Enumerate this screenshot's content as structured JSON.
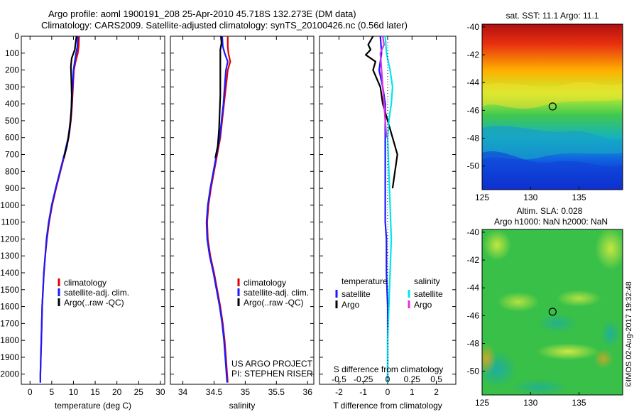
{
  "title": {
    "line1": "Argo profile: aoml 1900191_208 25-Apr-2010 45.718S 132.273E (DM data)",
    "line2": "Climatology: CARS2009. Satellite-adjusted climatology: synTS_20100426.nc (0.56d later)"
  },
  "credit": "©IMOS 02-Aug-2017 19:32:48",
  "colors": {
    "climatology": "#e00000",
    "satellite": "#1a1aff",
    "argo": "#000000",
    "sal_satellite": "#00e5ee",
    "sal_argo": "#e030e0"
  },
  "chart_data": [
    {
      "type": "line",
      "name": "temperature-panel",
      "xlabel": "temperature (deg C)",
      "ylabel": "",
      "xlim": [
        -2,
        31
      ],
      "ylim": [
        2060,
        0
      ],
      "xticks": [
        "0",
        "5",
        "10",
        "15",
        "20",
        "25",
        "30"
      ],
      "xtick_values": [
        0,
        5,
        10,
        15,
        20,
        25,
        30
      ],
      "yticks": [
        "0",
        "100",
        "200",
        "300",
        "400",
        "500",
        "600",
        "700",
        "800",
        "900",
        "1000",
        "1100",
        "1200",
        "1300",
        "1400",
        "1500",
        "1600",
        "1700",
        "1800",
        "1900",
        "2000"
      ],
      "ytick_values": [
        0,
        100,
        200,
        300,
        400,
        500,
        600,
        700,
        800,
        900,
        1000,
        1100,
        1200,
        1300,
        1400,
        1500,
        1600,
        1700,
        1800,
        1900,
        2000
      ],
      "legend": [
        "climatology",
        "satellite-adj. clim.",
        "Argo(..raw -QC)"
      ],
      "series": [
        {
          "name": "climatology",
          "points": [
            [
              11.3,
              0
            ],
            [
              11.2,
              60
            ],
            [
              11.0,
              100
            ],
            [
              10.5,
              150
            ],
            [
              10.1,
              200
            ],
            [
              9.9,
              300
            ],
            [
              9.7,
              400
            ],
            [
              9.4,
              500
            ],
            [
              8.9,
              600
            ],
            [
              8.0,
              700
            ],
            [
              7.0,
              800
            ],
            [
              6.0,
              900
            ],
            [
              5.1,
              1000
            ],
            [
              4.4,
              1100
            ],
            [
              3.9,
              1200
            ],
            [
              3.5,
              1300
            ],
            [
              3.2,
              1400
            ],
            [
              3.0,
              1500
            ],
            [
              2.8,
              1600
            ],
            [
              2.7,
              1700
            ],
            [
              2.6,
              1800
            ],
            [
              2.5,
              1900
            ],
            [
              2.4,
              2000
            ],
            [
              2.4,
              2050
            ]
          ]
        },
        {
          "name": "satellite-adj. clim.",
          "points": [
            [
              11.0,
              0
            ],
            [
              10.9,
              60
            ],
            [
              10.6,
              100
            ],
            [
              10.3,
              150
            ],
            [
              10.0,
              200
            ],
            [
              9.8,
              300
            ],
            [
              9.6,
              400
            ],
            [
              9.3,
              500
            ],
            [
              8.8,
              600
            ],
            [
              7.9,
              700
            ],
            [
              6.9,
              800
            ],
            [
              5.9,
              900
            ],
            [
              5.0,
              1000
            ],
            [
              4.3,
              1100
            ],
            [
              3.8,
              1200
            ],
            [
              3.5,
              1300
            ],
            [
              3.2,
              1400
            ],
            [
              3.0,
              1500
            ],
            [
              2.8,
              1600
            ],
            [
              2.7,
              1700
            ],
            [
              2.6,
              1800
            ],
            [
              2.5,
              1900
            ],
            [
              2.4,
              2000
            ],
            [
              2.4,
              2050
            ]
          ]
        },
        {
          "name": "Argo(..raw -QC)",
          "points": [
            [
              10.7,
              0
            ],
            [
              10.5,
              40
            ],
            [
              10.3,
              80
            ],
            [
              9.6,
              130
            ],
            [
              9.4,
              180
            ],
            [
              9.5,
              250
            ],
            [
              9.6,
              350
            ],
            [
              9.5,
              450
            ],
            [
              9.1,
              560
            ],
            [
              8.5,
              650
            ],
            [
              7.8,
              720
            ]
          ]
        }
      ]
    },
    {
      "type": "line",
      "name": "salinity-panel",
      "xlabel": "salinity",
      "ylabel": "",
      "xlim": [
        33.8,
        36.1
      ],
      "ylim": [
        2060,
        0
      ],
      "xticks": [
        "34",
        "34.5",
        "35",
        "35.5",
        "36"
      ],
      "xtick_values": [
        34,
        34.5,
        35,
        35.5,
        36
      ],
      "legend": [
        "climatology",
        "satellite-adj. clim.",
        "Argo(..raw -QC)"
      ],
      "annotation": [
        "US ARGO PROJECT",
        "PI: STEPHEN RISER"
      ],
      "series": [
        {
          "name": "climatology",
          "points": [
            [
              34.72,
              0
            ],
            [
              34.72,
              60
            ],
            [
              34.73,
              100
            ],
            [
              34.76,
              150
            ],
            [
              34.72,
              200
            ],
            [
              34.69,
              300
            ],
            [
              34.66,
              400
            ],
            [
              34.63,
              500
            ],
            [
              34.6,
              600
            ],
            [
              34.55,
              700
            ],
            [
              34.5,
              800
            ],
            [
              34.45,
              900
            ],
            [
              34.41,
              1000
            ],
            [
              34.39,
              1100
            ],
            [
              34.4,
              1200
            ],
            [
              34.44,
              1300
            ],
            [
              34.5,
              1400
            ],
            [
              34.55,
              1500
            ],
            [
              34.6,
              1600
            ],
            [
              34.64,
              1700
            ],
            [
              34.67,
              1800
            ],
            [
              34.69,
              1900
            ],
            [
              34.71,
              2000
            ],
            [
              34.72,
              2050
            ]
          ]
        },
        {
          "name": "satellite-adj. clim.",
          "points": [
            [
              34.63,
              0
            ],
            [
              34.64,
              60
            ],
            [
              34.67,
              100
            ],
            [
              34.72,
              150
            ],
            [
              34.69,
              200
            ],
            [
              34.67,
              300
            ],
            [
              34.65,
              400
            ],
            [
              34.62,
              500
            ],
            [
              34.59,
              600
            ],
            [
              34.54,
              700
            ],
            [
              34.49,
              800
            ],
            [
              34.44,
              900
            ],
            [
              34.4,
              1000
            ],
            [
              34.38,
              1100
            ],
            [
              34.39,
              1200
            ],
            [
              34.43,
              1300
            ],
            [
              34.49,
              1400
            ],
            [
              34.54,
              1500
            ],
            [
              34.59,
              1600
            ],
            [
              34.63,
              1700
            ],
            [
              34.66,
              1800
            ],
            [
              34.68,
              1900
            ],
            [
              34.7,
              2000
            ],
            [
              34.71,
              2050
            ]
          ]
        },
        {
          "name": "Argo(..raw -QC)",
          "points": [
            [
              34.61,
              0
            ],
            [
              34.62,
              40
            ],
            [
              34.6,
              80
            ],
            [
              34.6,
              150
            ],
            [
              34.6,
              250
            ],
            [
              34.6,
              350
            ],
            [
              34.59,
              450
            ],
            [
              34.58,
              550
            ],
            [
              34.56,
              650
            ],
            [
              34.52,
              720
            ]
          ]
        }
      ]
    },
    {
      "type": "line",
      "name": "difference-panel",
      "xlabel": "T difference from climatology",
      "xlabel_top": "S difference from climatology",
      "xlim": [
        -2.8,
        2.8
      ],
      "ylim": [
        2060,
        0
      ],
      "xticks": [
        "-2",
        "-1",
        "0",
        "1",
        "2"
      ],
      "xtick_values": [
        -2,
        -1,
        0,
        1,
        2
      ],
      "s_ticks": [
        "-0.5",
        "-0.25",
        "0",
        "0.25",
        "0.5"
      ],
      "legend_titles": [
        "temperature",
        "salinity"
      ],
      "legend": [
        "satellite",
        "Argo",
        "satellite",
        "Argo"
      ],
      "series": [
        {
          "name": "temperature satellite",
          "points": [
            [
              -0.3,
              0
            ],
            [
              -0.25,
              100
            ],
            [
              -0.35,
              200
            ],
            [
              -0.2,
              300
            ],
            [
              -0.1,
              400
            ],
            [
              -0.1,
              500
            ],
            [
              -0.1,
              600
            ],
            [
              -0.1,
              700
            ],
            [
              -0.1,
              800
            ],
            [
              -0.1,
              900
            ],
            [
              -0.1,
              1000
            ],
            [
              -0.1,
              1100
            ],
            [
              -0.05,
              1200
            ],
            [
              -0.05,
              1400
            ],
            [
              0,
              1600
            ],
            [
              0,
              1800
            ],
            [
              0,
              2050
            ]
          ]
        },
        {
          "name": "temperature Argo",
          "points": [
            [
              -0.6,
              0
            ],
            [
              -0.8,
              50
            ],
            [
              -0.7,
              80
            ],
            [
              -0.9,
              110
            ],
            [
              -0.5,
              150
            ],
            [
              -0.6,
              200
            ],
            [
              -0.3,
              300
            ],
            [
              -0.2,
              400
            ],
            [
              0.0,
              500
            ],
            [
              0.2,
              600
            ],
            [
              0.4,
              700
            ],
            [
              0.3,
              800
            ],
            [
              0.2,
              900
            ]
          ]
        },
        {
          "name": "salinity satellite",
          "points": [
            [
              -0.1,
              0
            ],
            [
              -0.05,
              100
            ],
            [
              0.1,
              200
            ],
            [
              0.2,
              300
            ],
            [
              0.15,
              400
            ],
            [
              0.05,
              500
            ],
            [
              0.0,
              600
            ],
            [
              0.05,
              800
            ],
            [
              0.1,
              1000
            ],
            [
              0.15,
              1200
            ],
            [
              0.1,
              1400
            ],
            [
              0.05,
              1600
            ],
            [
              0,
              1800
            ],
            [
              0,
              2050
            ]
          ]
        },
        {
          "name": "salinity Argo",
          "points": [
            [
              -0.2,
              0
            ],
            [
              -0.15,
              50
            ],
            [
              -0.3,
              100
            ],
            [
              -0.25,
              200
            ],
            [
              -0.2,
              300
            ],
            [
              -0.15,
              400
            ],
            [
              -0.1,
              500
            ],
            [
              -0.05,
              600
            ]
          ]
        }
      ]
    },
    {
      "type": "heatmap",
      "name": "sst-map",
      "title": "sat. SST: 11.1  Argo: 11.1",
      "xlim": [
        125,
        139.5
      ],
      "ylim": [
        -51.7,
        -39.8
      ],
      "xticks": [
        "125",
        "130",
        "135"
      ],
      "xtick_values": [
        125,
        130,
        135
      ],
      "yticks": [
        "-40",
        "-42",
        "-44",
        "-46",
        "-48",
        "-50"
      ],
      "ytick_values": [
        -40,
        -42,
        -44,
        -46,
        -48,
        -50
      ],
      "marker": {
        "lon": 132.273,
        "lat": -45.718
      }
    },
    {
      "type": "heatmap",
      "name": "sla-map",
      "title_line1": "Altim. SLA: 0.028",
      "title_line2": "Argo h1000: NaN h2000: NaN",
      "xlim": [
        125,
        139.5
      ],
      "ylim": [
        -51.7,
        -39.8
      ],
      "xticks": [
        "125",
        "130",
        "135"
      ],
      "xtick_values": [
        125,
        130,
        135
      ],
      "yticks": [
        "-40",
        "-42",
        "-44",
        "-46",
        "-48",
        "-50"
      ],
      "ytick_values": [
        -40,
        -42,
        -44,
        -46,
        -48,
        -50
      ],
      "marker": {
        "lon": 132.273,
        "lat": -45.718
      }
    }
  ]
}
